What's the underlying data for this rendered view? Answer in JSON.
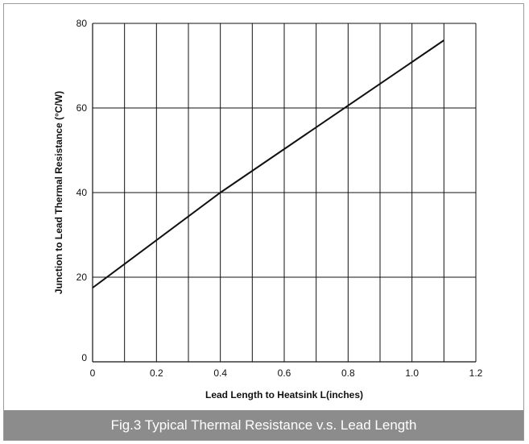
{
  "chart_data": {
    "type": "line",
    "title": "",
    "xlabel": "Lead Length to Heatsink  L(inches)",
    "ylabel": "Junction to Lead Thermal Resistance  (°C/W)",
    "xlim": [
      0,
      1.2
    ],
    "ylim": [
      0,
      80
    ],
    "x_ticks": [
      0,
      0.2,
      0.4,
      0.6,
      0.8,
      1.0,
      1.2
    ],
    "x_tick_labels": [
      "0",
      "0.2",
      "0.4",
      "0.6",
      "0.8",
      "1.0",
      "1.2"
    ],
    "y_ticks": [
      0,
      20,
      40,
      60,
      80
    ],
    "y_tick_labels": [
      "0",
      "20",
      "40",
      "60",
      "80"
    ],
    "x_gridlines": [
      0.1,
      0.2,
      0.3,
      0.4,
      0.5,
      0.6,
      0.7,
      0.8,
      0.9,
      1.0,
      1.1,
      1.2
    ],
    "y_gridlines": [
      20,
      40,
      60,
      80
    ],
    "grid": true,
    "legend": "none",
    "series": [
      {
        "x": [
          0,
          0.4,
          1.1
        ],
        "values": [
          17.5,
          40,
          76
        ],
        "color": "#111111"
      }
    ]
  },
  "caption": "Fig.3 Typical Thermal Resistance v.s. Lead Length"
}
